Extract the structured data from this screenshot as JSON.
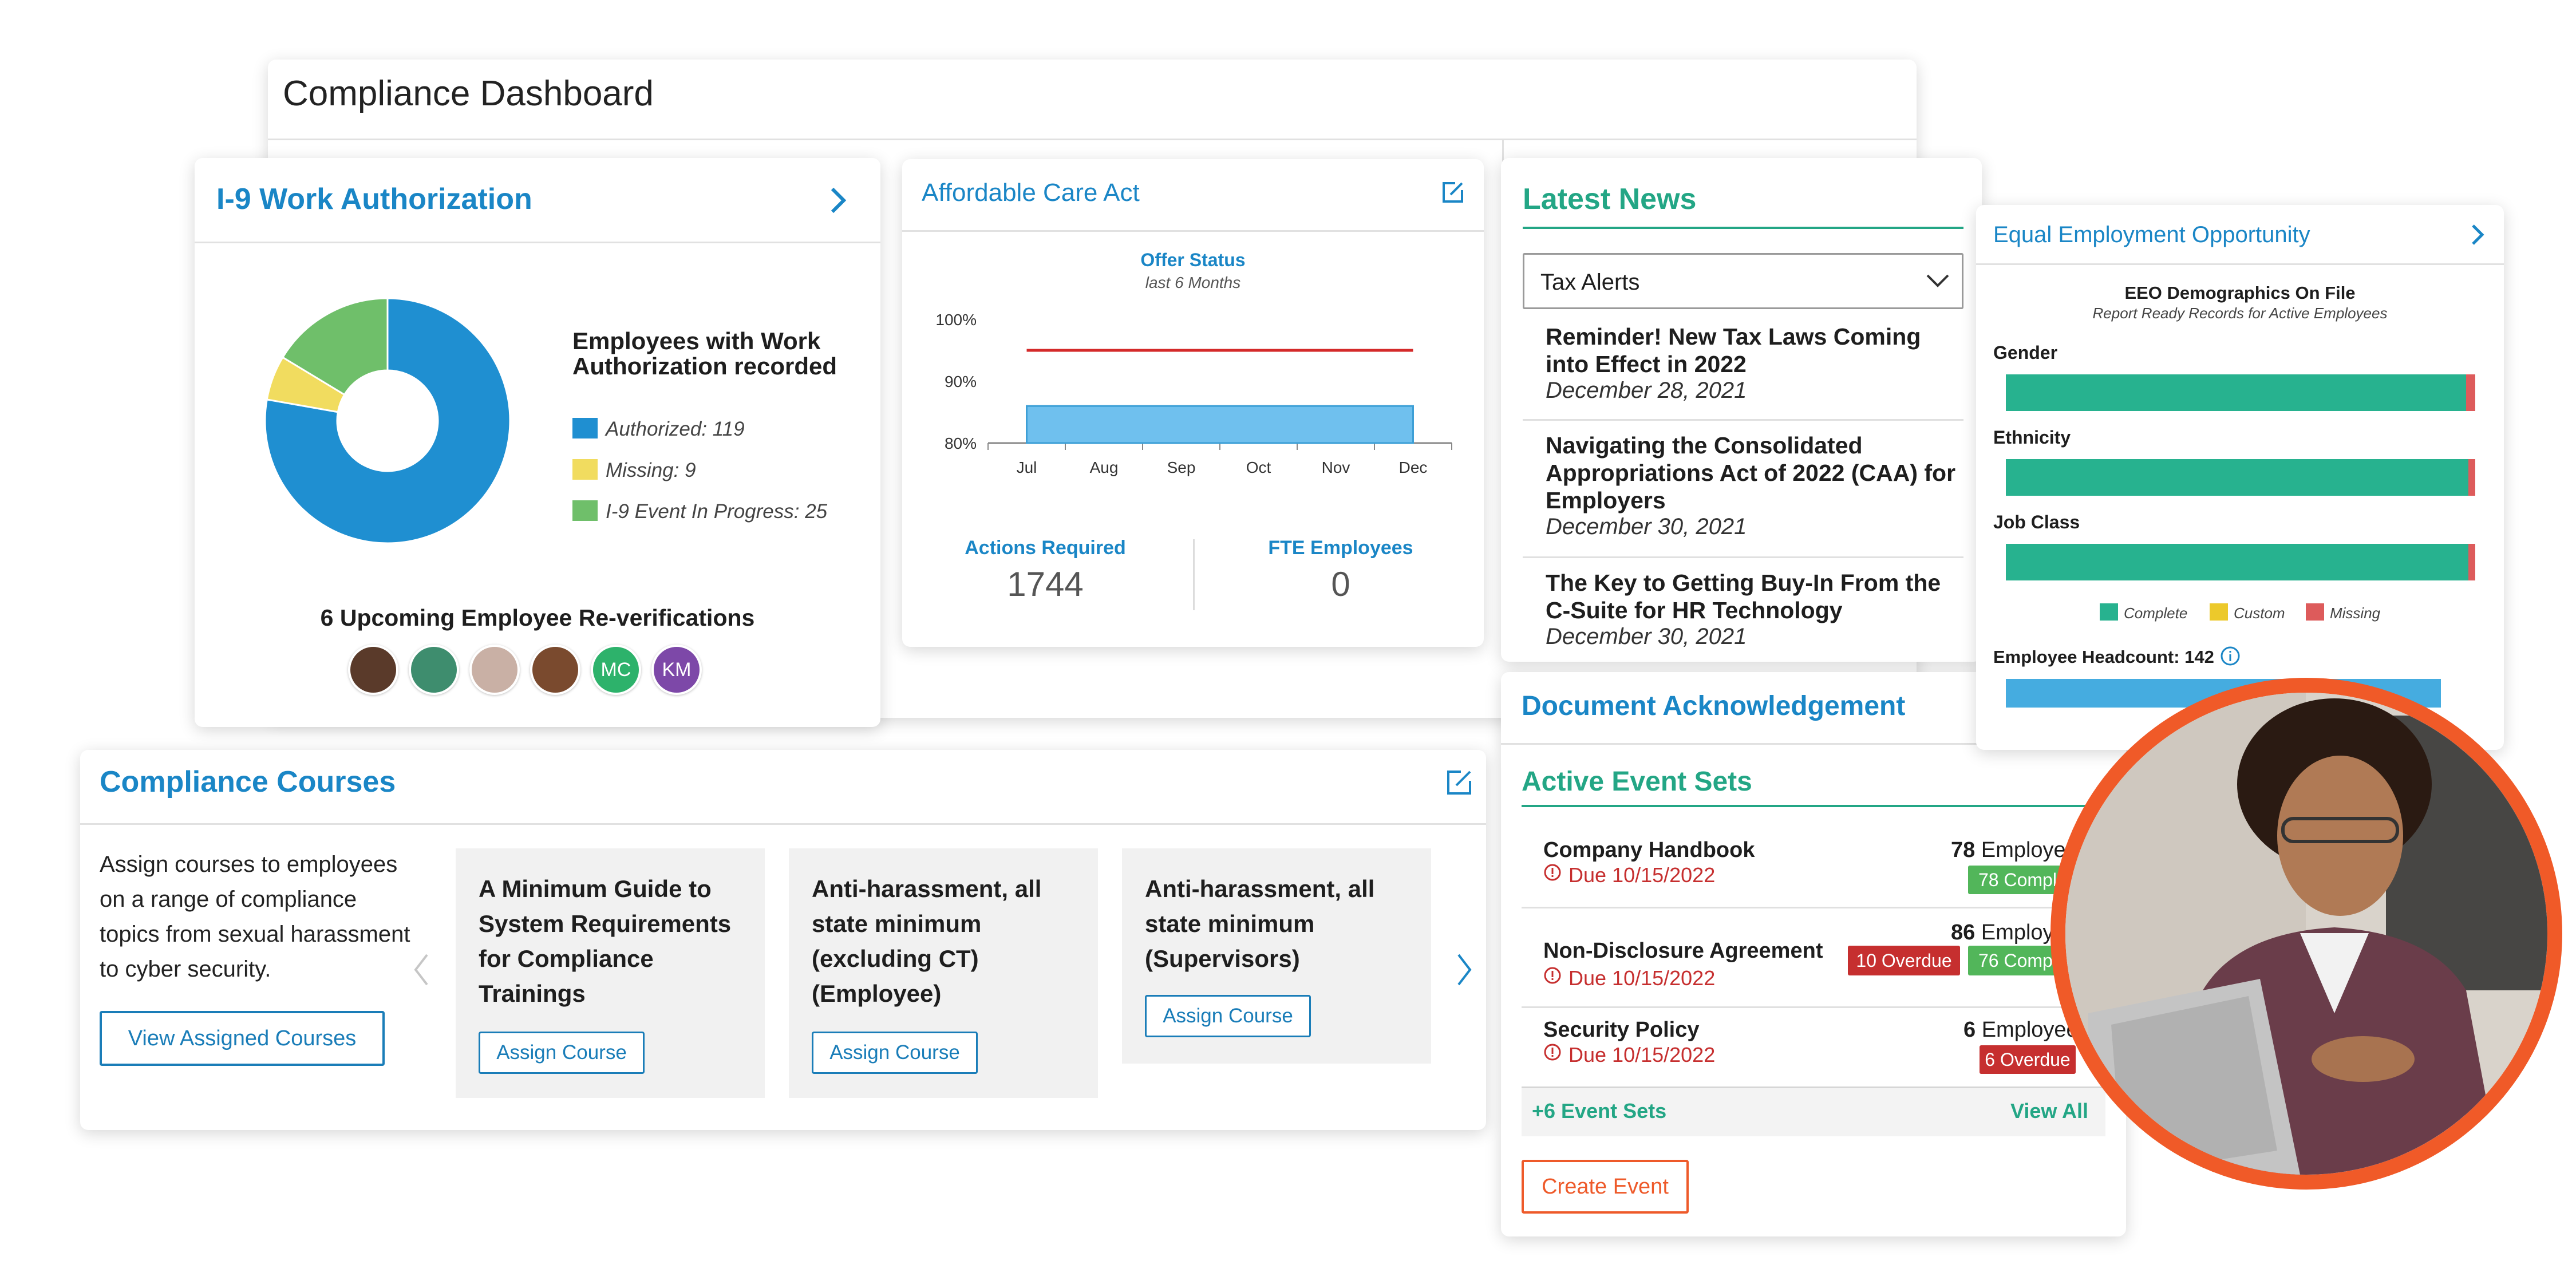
{
  "dashboard": {
    "title": "Compliance Dashboard"
  },
  "i9": {
    "title": "I-9 Work Authorization",
    "legend_title": "Employees with Work Authorization recorded",
    "legend": [
      {
        "label": "Authorized: 119",
        "color": "#1f8fd1"
      },
      {
        "label": "Missing: 9",
        "color": "#f1dc5f"
      },
      {
        "label": "I-9 Event In Progress: 25",
        "color": "#6fbf6a"
      }
    ],
    "reverification_title": "6 Upcoming Employee Re-verifications",
    "avatars": [
      {
        "initials": "",
        "color": "#5a3a2a"
      },
      {
        "initials": "",
        "color": "#3e8d6e"
      },
      {
        "initials": "",
        "color": "#c9b0a5"
      },
      {
        "initials": "",
        "color": "#7a4a2e"
      },
      {
        "initials": "MC",
        "color": "#2db26b"
      },
      {
        "initials": "KM",
        "color": "#7d48a8"
      }
    ]
  },
  "aca": {
    "title": "Affordable Care Act",
    "chart_title": "Offer Status",
    "chart_subtitle": "last 6 Months",
    "actions_label": "Actions Required",
    "actions_value": "1744",
    "fte_label": "FTE Employees",
    "fte_value": "0"
  },
  "chart_data": {
    "type": "area",
    "title": "Offer Status",
    "subtitle": "last 6 Months",
    "categories": [
      "Jul",
      "Aug",
      "Sep",
      "Oct",
      "Nov",
      "Dec"
    ],
    "y_ticks": [
      "80%",
      "90%",
      "100%"
    ],
    "ylim": [
      80,
      100
    ],
    "series": [
      {
        "values": [
          86,
          86,
          86,
          86,
          86,
          86
        ],
        "color": "#6fc0ee"
      },
      {
        "values": [
          95,
          95,
          95,
          95,
          95,
          95
        ],
        "color": "#d42a2a"
      }
    ]
  },
  "news": {
    "title": "Latest News",
    "select_value": "Tax Alerts",
    "items": [
      {
        "title": "Reminder! New Tax Laws Coming into Effect in 2022",
        "date": "December 28, 2021"
      },
      {
        "title": "Navigating the Consolidated Appropriations Act of 2022 (CAA) for Employers",
        "date": "December 30, 2021"
      },
      {
        "title": "The Key to Getting Buy-In From the C-Suite for HR Technology",
        "date": "December 30, 2021"
      }
    ]
  },
  "eeo": {
    "title": "Equal Employment Opportunity",
    "chart_title": "EEO Demographics On File",
    "chart_subtitle": "Report Ready Records for Active Employees",
    "bars": [
      {
        "label": "Gender",
        "complete": 98,
        "custom": 0,
        "missing": 2
      },
      {
        "label": "Ethnicity",
        "complete": 98.5,
        "custom": 0,
        "missing": 1.5
      },
      {
        "label": "Job Class",
        "complete": 98.5,
        "custom": 0,
        "missing": 1.5
      }
    ],
    "legend": [
      {
        "label": "Complete",
        "color": "#27b28f"
      },
      {
        "label": "Custom",
        "color": "#ecc92b"
      },
      {
        "label": "Missing",
        "color": "#dd5b5b"
      }
    ],
    "headcount_label": "Employee Headcount: 142",
    "headcount_color": "#45ace0"
  },
  "courses": {
    "title": "Compliance Courses",
    "description": "Assign courses to employees on a range of compliance topics from sexual harassment to cyber security.",
    "view_button": "View Assigned Courses",
    "tiles": [
      {
        "title": "A Minimum Guide to System Requirements for Compliance Trainings",
        "button": "Assign Course"
      },
      {
        "title": "Anti-harassment, all state minimum (excluding CT) (Employee)",
        "button": "Assign Course"
      },
      {
        "title": "Anti-harassment, all state minimum (Supervisors)",
        "button": "Assign Course"
      }
    ]
  },
  "docs": {
    "title": "Document Acknowledgement",
    "subtitle": "Active Event Sets",
    "events": [
      {
        "name": "Company Handbook",
        "due": "Due 10/15/2022",
        "count": "78",
        "count_label": "Employe",
        "overdue": "",
        "complete": "78 Compl"
      },
      {
        "name": "Non-Disclosure Agreement",
        "due": "Due 10/15/2022",
        "count": "86",
        "count_label": "Employ",
        "overdue": "10 Overdue",
        "complete": "76 Comp"
      },
      {
        "name": "Security Policy",
        "due": "Due 10/15/2022",
        "count": "6",
        "count_label": "Employee",
        "overdue": "6 Overdue",
        "complete": ""
      }
    ],
    "more_sets": "+6 Event Sets",
    "view_all": "View All",
    "create_button": "Create Event"
  }
}
